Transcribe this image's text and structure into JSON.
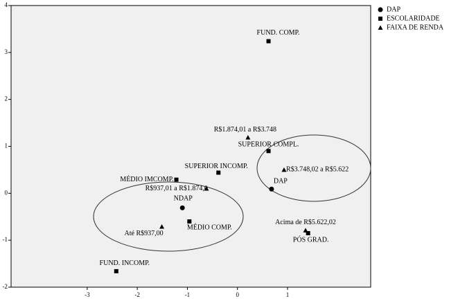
{
  "chart_data": {
    "type": "scatter",
    "xlim": [
      -4.52,
      2.66
    ],
    "ylim": [
      -2,
      4
    ],
    "xticks": [
      -3,
      -2,
      -1,
      0,
      1
    ],
    "yticks": [
      -2,
      -1,
      0,
      1,
      2,
      3,
      4
    ],
    "series": [
      {
        "name": "DAP",
        "marker": "circle",
        "color": "#000000",
        "labels": [
          "DAP",
          "NDAP"
        ],
        "x": [
          0.68,
          -1.1
        ],
        "values": [
          0.09,
          -0.31
        ]
      },
      {
        "name": "ESCOLARIDADE",
        "marker": "square",
        "color": "#000000",
        "labels": [
          "FUND. COMP.",
          "SUPERIOR COMPL.",
          "SUPERIOR INCOMP.",
          "MÉDIO IMCOMP.",
          "MÉDIO COMP.",
          "PÓS GRAD.",
          "FUND. INCOMP."
        ],
        "x": [
          0.62,
          0.62,
          -0.38,
          -1.22,
          -0.96,
          1.41,
          -2.42
        ],
        "values": [
          3.24,
          0.9,
          0.44,
          0.29,
          -0.6,
          -0.85,
          -1.66
        ]
      },
      {
        "name": "FAIXA DE RENDA",
        "marker": "triangle",
        "color": "#000000",
        "labels": [
          "R$1.874,01 a R$3.748",
          "R$3.748,02 a R$5.622",
          "R$937,01 a R$1.874,0",
          "Até R$937,00",
          "Acima de R$5.622,02"
        ],
        "x": [
          0.21,
          0.93,
          -0.62,
          -1.51,
          1.36
        ],
        "values": [
          1.19,
          0.5,
          0.1,
          -0.71,
          -0.79
        ]
      }
    ]
  }
}
